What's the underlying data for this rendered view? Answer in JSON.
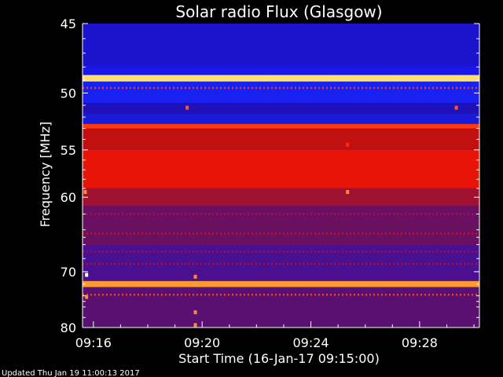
{
  "chart_data": {
    "type": "heatmap",
    "title": "Solar radio Flux (Glasgow)",
    "ylabel": "Frequency [MHz]",
    "xlabel": "Start Time (16-Jan-17 09:15:00)",
    "y_scale": "reciprocal",
    "ylim": [
      45,
      80
    ],
    "y_ticks": [
      45,
      50,
      55,
      60,
      70,
      80
    ],
    "y_tick_labels": [
      "45",
      "50",
      "55",
      "60",
      "70",
      "80"
    ],
    "xlim_minutes": [
      15.6,
      30.2
    ],
    "x_ticks": [
      16,
      20,
      24,
      28
    ],
    "x_tick_labels": [
      "09:16",
      "09:20",
      "09:24",
      "09:28"
    ],
    "colormap": [
      "#000040",
      "#1a10c8",
      "#7a1080",
      "#ff1a00",
      "#ffe880"
    ],
    "bands": [
      {
        "from": 45.0,
        "to": 47.9,
        "color": "#1a14cc"
      },
      {
        "from": 47.9,
        "to": 48.6,
        "color": "#1a18e8"
      },
      {
        "from": 48.6,
        "to": 49.1,
        "color": "#ffe070"
      },
      {
        "from": 49.1,
        "to": 50.8,
        "color": "#1a20f0"
      },
      {
        "from": 50.8,
        "to": 51.7,
        "color": "#2010b8"
      },
      {
        "from": 51.7,
        "to": 52.6,
        "color": "#1a1ad8"
      },
      {
        "from": 52.6,
        "to": 53.0,
        "color": "#ff3a10"
      },
      {
        "from": 53.0,
        "to": 55.0,
        "color": "#c01010"
      },
      {
        "from": 55.0,
        "to": 59.0,
        "color": "#e81408"
      },
      {
        "from": 59.0,
        "to": 61.0,
        "color": "#a01030"
      },
      {
        "from": 61.0,
        "to": 66.0,
        "color": "#6a1060"
      },
      {
        "from": 66.0,
        "to": 71.5,
        "color": "#4a1090"
      },
      {
        "from": 71.5,
        "to": 72.5,
        "color": "#ff9a30"
      },
      {
        "from": 72.5,
        "to": 80.0,
        "color": "#5a1070"
      }
    ],
    "stripes": [
      {
        "freq": 49.6,
        "color": "#ff4a20"
      },
      {
        "freq": 62.0,
        "color": "#c01040"
      },
      {
        "freq": 64.5,
        "color": "#d01030"
      },
      {
        "freq": 67.0,
        "color": "#b01040"
      },
      {
        "freq": 68.8,
        "color": "#c01030"
      },
      {
        "freq": 73.8,
        "color": "#ff5020"
      }
    ],
    "spots": [
      {
        "time": 19.45,
        "freq": 51.2,
        "color": "#ff5a20"
      },
      {
        "time": 29.35,
        "freq": 51.2,
        "color": "#ff5a20"
      },
      {
        "time": 25.35,
        "freq": 54.5,
        "color": "#ff2a10"
      },
      {
        "time": 25.35,
        "freq": 59.4,
        "color": "#ff8a30"
      },
      {
        "time": 15.7,
        "freq": 59.4,
        "color": "#ff8a30"
      },
      {
        "time": 15.75,
        "freq": 70.5,
        "color": "#ffffcc"
      },
      {
        "time": 15.75,
        "freq": 74.2,
        "color": "#ff8a30"
      },
      {
        "time": 19.75,
        "freq": 70.8,
        "color": "#ff8a30"
      },
      {
        "time": 19.75,
        "freq": 77.0,
        "color": "#ff8a30"
      },
      {
        "time": 19.75,
        "freq": 79.5,
        "color": "#ff8a30"
      }
    ]
  },
  "footer": {
    "updated": "Updated Thu Jan 19 11:00:13 2017"
  }
}
